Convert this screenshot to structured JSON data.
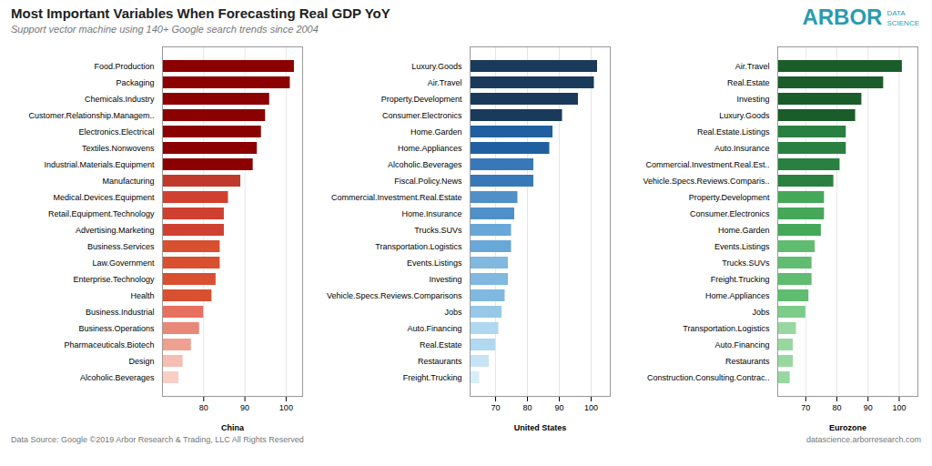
{
  "title": "Most Important Variables When Forecasting Real GDP YoY",
  "subtitle": "Support vector machine using 140+ Google search trends since 2004",
  "annotations": [
    "Data Source: Google    ©2019 Arbor Research & Trading, LLC    All Rights Reserved",
    "datascience.arborresearch.com",
    "ARBOR",
    "DATA\nSCIENCE"
  ],
  "chart_data": [
    {
      "type": "bar",
      "orientation": "horizontal",
      "xlabel": "China",
      "categories": [
        "Food.Production",
        "Packaging",
        "Chemicals.Industry",
        "Customer.Relationship.Managem..",
        "Electronics.Electrical",
        "Textiles.Nonwovens",
        "Industrial.Materials.Equipment",
        "Manufacturing",
        "Medical.Devices.Equipment",
        "Retail.Equipment.Technology",
        "Advertising.Marketing",
        "Business.Services",
        "Law.Government",
        "Enterprise.Technology",
        "Health",
        "Business.Industrial",
        "Business.Operations",
        "Pharmaceuticals.Biotech",
        "Design",
        "Alcoholic.Beverages"
      ],
      "values": [
        102,
        101,
        96,
        95,
        94,
        93,
        92,
        89,
        86,
        85,
        85,
        84,
        84,
        83,
        82,
        80,
        79,
        77,
        75,
        74
      ],
      "colors": [
        "#8B0000",
        "#8B0000",
        "#8B0000",
        "#8B0000",
        "#8B0000",
        "#8B0000",
        "#8B0000",
        "#C0392B",
        "#D04030",
        "#D04030",
        "#D04030",
        "#D85030",
        "#D85030",
        "#D85030",
        "#D85030",
        "#E87060",
        "#E88878",
        "#F0A090",
        "#F5BEB4",
        "#F8CEC6"
      ],
      "xlim": [
        70,
        104
      ],
      "xticks": [
        80,
        90,
        100
      ],
      "grid": true
    },
    {
      "type": "bar",
      "orientation": "horizontal",
      "xlabel": "United States",
      "categories": [
        "Luxury.Goods",
        "Air.Travel",
        "Property.Development",
        "Consumer.Electronics",
        "Home.Garden",
        "Home.Appliances",
        "Alcoholic.Beverages",
        "Fiscal.Policy.News",
        "Commercial.Investment.Real.Estate",
        "Home.Insurance",
        "Trucks.SUVs",
        "Transportation.Logistics",
        "Events.Listings",
        "Investing",
        "Vehicle.Specs.Reviews.Comparisons",
        "Jobs",
        "Auto.Financing",
        "Real.Estate",
        "Restaurants",
        "Freight.Trucking"
      ],
      "values": [
        102,
        101,
        96,
        91,
        88,
        87,
        82,
        82,
        77,
        76,
        75,
        75,
        74,
        74,
        73,
        72,
        71,
        70,
        68,
        65
      ],
      "colors": [
        "#1A3A5C",
        "#1A3A5C",
        "#1A3A5C",
        "#1A3A5C",
        "#2060A0",
        "#2060A0",
        "#3878B8",
        "#3878B8",
        "#5090C8",
        "#5090C8",
        "#68A8D8",
        "#68A8D8",
        "#80B8E0",
        "#80B8E0",
        "#80B8E0",
        "#98C8E8",
        "#B0D8F0",
        "#B0D8F0",
        "#C8E4F4",
        "#D8EEF8"
      ],
      "xlim": [
        62,
        106
      ],
      "xticks": [
        70,
        80,
        90,
        100
      ],
      "grid": true
    },
    {
      "type": "bar",
      "orientation": "horizontal",
      "xlabel": "Eurozone",
      "categories": [
        "Air.Travel",
        "Real.Estate",
        "Investing",
        "Luxury.Goods",
        "Real.Estate.Listings",
        "Auto.Insurance",
        "Commercial.Investment.Real.Est..",
        "Vehicle.Specs.Reviews.Comparis..",
        "Property.Development",
        "Consumer.Electronics",
        "Home.Garden",
        "Events.Listings",
        "Trucks.SUVs",
        "Freight.Trucking",
        "Home.Appliances",
        "Jobs",
        "Transportation.Logistics",
        "Auto.Financing",
        "Restaurants",
        "Construction.Consulting.Contrac.."
      ],
      "values": [
        101,
        95,
        88,
        86,
        83,
        83,
        81,
        79,
        76,
        76,
        75,
        73,
        72,
        72,
        71,
        70,
        67,
        66,
        66,
        65
      ],
      "colors": [
        "#1A5C2A",
        "#1A5C2A",
        "#1A5C2A",
        "#1A5C2A",
        "#2A8040",
        "#2A8040",
        "#2A8040",
        "#2A8040",
        "#44A858",
        "#44A858",
        "#44A858",
        "#60BC70",
        "#60BC70",
        "#60BC70",
        "#60BC70",
        "#7CCC88",
        "#98D8A0",
        "#98D8A0",
        "#98D8A0",
        "#98D8A0"
      ],
      "xlim": [
        61,
        106
      ],
      "xticks": [
        70,
        80,
        90,
        100
      ],
      "grid": true
    }
  ]
}
